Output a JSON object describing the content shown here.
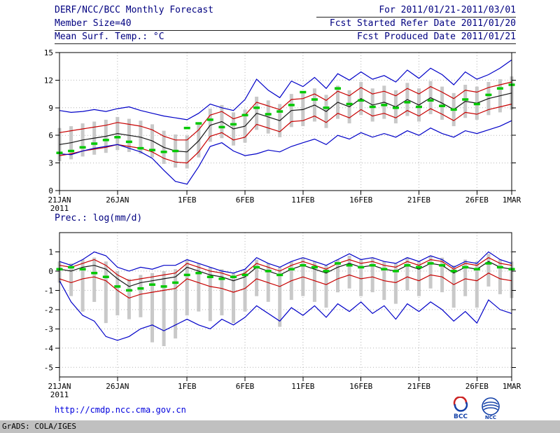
{
  "header": {
    "title": "DERF/NCC/BCC Monthly Forecast",
    "member_size": "Member Size=40",
    "for_range": "For 2011/01/21-2011/03/01",
    "fcst_started": "Fcst Started Refer Date 2011/01/20",
    "fcst_produced": "Fcst Produced Date 2011/01/21"
  },
  "footer": {
    "url": "http://cmdp.ncc.cma.gov.cn",
    "grads_credit": "GrADS: COLA/IGES",
    "bcc_logo_text": "BCC",
    "ncc_logo_text": "NCC"
  },
  "colors": {
    "header_text": "#000080",
    "ensemble_max_min": "#0000c8",
    "quartile_lines": "#c80000",
    "ensemble_mean": "#141414",
    "observation": "#00c800",
    "spread_bars": "#c9c9c9",
    "grid": "#b4b4b4",
    "url": "#0000dd"
  },
  "chart_data": [
    {
      "type": "line",
      "title": "Mean Surf. Temp.: °C",
      "xlabel": "",
      "ylabel": "°C",
      "ylim": [
        0,
        15
      ],
      "yticks": [
        0,
        3,
        6,
        9,
        12,
        15
      ],
      "grid": "dotted",
      "n": 40,
      "x_tick_positions": [
        0,
        5,
        11,
        16,
        21,
        26,
        31,
        36,
        39
      ],
      "x_tick_labels": [
        "21JAN",
        "26JAN",
        "1FEB",
        "6FEB",
        "11FEB",
        "16FEB",
        "21FEB",
        "26FEB",
        "1MAR"
      ],
      "x_sub_label": "2011",
      "series": [
        {
          "name": "spread-bars",
          "type": "bar",
          "color": "#c9c9c9",
          "low": [
            3.2,
            3.4,
            3.7,
            3.9,
            4.1,
            4.4,
            4.2,
            4.0,
            3.6,
            2.9,
            2.5,
            2.4,
            3.6,
            5.3,
            5.7,
            4.9,
            5.2,
            6.6,
            6.2,
            5.8,
            6.9,
            7.0,
            7.5,
            6.8,
            7.8,
            7.3,
            8.2,
            7.5,
            7.8,
            7.3,
            8.1,
            7.5,
            8.3,
            7.7,
            7.0,
            7.9,
            7.7,
            8.2,
            8.5,
            8.8
          ],
          "high": [
            6.8,
            7.0,
            7.3,
            7.5,
            7.7,
            8.0,
            7.8,
            7.6,
            7.2,
            6.5,
            6.1,
            6.0,
            7.2,
            8.9,
            9.3,
            8.5,
            8.8,
            10.2,
            9.8,
            9.4,
            10.5,
            10.6,
            11.1,
            10.4,
            11.4,
            10.9,
            11.8,
            11.1,
            11.4,
            10.9,
            11.7,
            11.1,
            11.9,
            11.3,
            10.6,
            11.5,
            11.3,
            11.8,
            12.1,
            12.4
          ]
        },
        {
          "name": "ensemble-max",
          "type": "line",
          "color": "#0000c8",
          "values": [
            8.7,
            8.5,
            8.6,
            8.8,
            8.6,
            8.9,
            9.1,
            8.7,
            8.4,
            8.1,
            7.9,
            7.7,
            8.4,
            9.4,
            9.0,
            8.7,
            9.9,
            12.1,
            10.9,
            10.1,
            11.9,
            11.3,
            12.3,
            11.1,
            12.7,
            12.0,
            12.9,
            12.1,
            12.5,
            11.8,
            13.1,
            12.2,
            13.3,
            12.6,
            11.5,
            12.9,
            12.1,
            12.6,
            13.3,
            14.2
          ]
        },
        {
          "name": "upper-quartile",
          "type": "line",
          "color": "#c80000",
          "values": [
            6.3,
            6.5,
            6.7,
            6.9,
            7.1,
            7.4,
            7.2,
            7.0,
            6.6,
            5.9,
            5.5,
            5.5,
            6.6,
            8.2,
            8.6,
            7.8,
            8.2,
            9.6,
            9.2,
            8.8,
            9.9,
            10.0,
            10.5,
            9.8,
            10.8,
            10.3,
            11.2,
            10.5,
            10.8,
            10.3,
            11.1,
            10.5,
            11.3,
            10.7,
            10.0,
            10.9,
            10.7,
            11.2,
            11.5,
            11.8
          ]
        },
        {
          "name": "ensemble-mean",
          "type": "line",
          "color": "#141414",
          "values": [
            5.0,
            5.2,
            5.5,
            5.7,
            5.9,
            6.2,
            6.0,
            5.8,
            5.4,
            4.7,
            4.3,
            4.2,
            5.4,
            7.1,
            7.5,
            6.7,
            7.0,
            8.4,
            8.0,
            7.6,
            8.7,
            8.8,
            9.3,
            8.6,
            9.6,
            9.1,
            10.0,
            9.3,
            9.6,
            9.1,
            9.9,
            9.3,
            10.1,
            9.5,
            8.8,
            9.7,
            9.5,
            10.0,
            10.3,
            10.6
          ]
        },
        {
          "name": "lower-quartile",
          "type": "line",
          "color": "#c80000",
          "values": [
            3.8,
            4.0,
            4.3,
            4.5,
            4.7,
            5.0,
            4.8,
            4.6,
            4.2,
            3.5,
            3.1,
            3.0,
            4.2,
            5.9,
            6.3,
            5.5,
            5.8,
            7.2,
            6.8,
            6.4,
            7.5,
            7.6,
            8.1,
            7.4,
            8.4,
            7.9,
            8.8,
            8.1,
            8.4,
            7.9,
            8.7,
            8.1,
            8.9,
            8.3,
            7.6,
            8.5,
            8.3,
            8.8,
            9.1,
            9.4
          ]
        },
        {
          "name": "ensemble-min",
          "type": "line",
          "color": "#0000c8",
          "values": [
            4.0,
            3.9,
            4.3,
            4.6,
            4.8,
            5.0,
            4.6,
            4.2,
            3.5,
            2.2,
            1.0,
            0.7,
            2.6,
            4.8,
            5.2,
            4.3,
            3.8,
            4.0,
            4.4,
            4.2,
            4.8,
            5.2,
            5.6,
            5.0,
            6.0,
            5.6,
            6.3,
            5.8,
            6.2,
            5.8,
            6.5,
            6.0,
            6.8,
            6.2,
            5.8,
            6.5,
            6.2,
            6.6,
            7.0,
            7.6
          ]
        },
        {
          "name": "observation",
          "type": "dash",
          "color": "#00c800",
          "values": [
            4.1,
            4.3,
            4.7,
            5.1,
            5.5,
            5.8,
            5.3,
            4.6,
            4.4,
            4.2,
            4.3,
            6.8,
            7.3,
            7.7,
            6.9,
            7.2,
            8.2,
            9.0,
            8.3,
            8.6,
            9.3,
            10.7,
            9.9,
            9.0,
            11.1,
            9.4,
            9.8,
            9.1,
            9.3,
            9.0,
            9.6,
            9.1,
            9.8,
            9.2,
            8.8,
            9.9,
            9.4,
            10.4,
            11.1,
            11.5
          ]
        }
      ]
    },
    {
      "type": "line",
      "title": "Prec.: log(mm/d)",
      "xlabel": "",
      "ylabel": "log(mm/d)",
      "ylim": [
        -5.5,
        2.0
      ],
      "yticks": [
        1,
        0,
        -1,
        -2,
        -3,
        -4,
        -5
      ],
      "grid": "dotted",
      "n": 40,
      "x_tick_positions": [
        0,
        5,
        11,
        16,
        21,
        26,
        31,
        36,
        39
      ],
      "x_tick_labels": [
        "21JAN",
        "26JAN",
        "1FEB",
        "6FEB",
        "11FEB",
        "16FEB",
        "21FEB",
        "26FEB",
        "1MAR"
      ],
      "x_sub_label": "2011",
      "series": [
        {
          "name": "spread-bars",
          "type": "bar",
          "color": "#c9c9c9",
          "low": [
            -0.6,
            -1.3,
            -2.1,
            -1.6,
            -2.7,
            -2.3,
            -2.5,
            -2.4,
            -3.7,
            -3.9,
            -3.5,
            -2.3,
            -2.1,
            -2.6,
            -2.3,
            -2.7,
            -2.1,
            -1.3,
            -1.6,
            -2.9,
            -1.5,
            -1.3,
            -1.6,
            -1.9,
            -1.1,
            -0.9,
            -1.3,
            -1.1,
            -1.5,
            -1.7,
            -1.0,
            -1.3,
            -0.9,
            -1.1,
            -1.9,
            -1.3,
            -1.9,
            -0.8,
            -1.2,
            -1.4
          ],
          "high": [
            0.5,
            0.4,
            0.6,
            0.7,
            0.5,
            0.0,
            -0.4,
            -0.2,
            -0.1,
            0.0,
            0.1,
            0.6,
            0.4,
            0.2,
            0.1,
            -0.1,
            0.1,
            0.6,
            0.4,
            0.2,
            0.5,
            0.7,
            0.5,
            0.3,
            0.6,
            0.8,
            0.6,
            0.7,
            0.5,
            0.4,
            0.7,
            0.5,
            0.8,
            0.7,
            0.3,
            0.6,
            0.5,
            0.9,
            0.6,
            0.5
          ]
        },
        {
          "name": "ensemble-max",
          "type": "line",
          "color": "#0000c8",
          "values": [
            0.5,
            0.3,
            0.6,
            1.0,
            0.8,
            0.2,
            0.0,
            0.2,
            0.1,
            0.3,
            0.3,
            0.6,
            0.4,
            0.2,
            0.0,
            -0.1,
            0.1,
            0.7,
            0.4,
            0.2,
            0.5,
            0.7,
            0.5,
            0.3,
            0.6,
            0.9,
            0.6,
            0.7,
            0.5,
            0.4,
            0.7,
            0.5,
            0.8,
            0.6,
            0.2,
            0.5,
            0.4,
            1.0,
            0.6,
            0.4
          ]
        },
        {
          "name": "upper-quartile",
          "type": "line",
          "color": "#c80000",
          "values": [
            0.3,
            0.2,
            0.4,
            0.6,
            0.3,
            -0.2,
            -0.5,
            -0.4,
            -0.3,
            -0.2,
            -0.1,
            0.4,
            0.2,
            0.0,
            -0.1,
            -0.3,
            -0.1,
            0.4,
            0.2,
            0.0,
            0.3,
            0.5,
            0.3,
            0.1,
            0.4,
            0.6,
            0.4,
            0.5,
            0.3,
            0.2,
            0.5,
            0.3,
            0.6,
            0.5,
            0.1,
            0.4,
            0.3,
            0.7,
            0.4,
            0.3
          ]
        },
        {
          "name": "ensemble-mean",
          "type": "line",
          "color": "#141414",
          "values": [
            0.1,
            0.0,
            0.2,
            0.3,
            0.1,
            -0.4,
            -0.8,
            -0.6,
            -0.5,
            -0.4,
            -0.3,
            0.2,
            0.0,
            -0.2,
            -0.3,
            -0.5,
            -0.3,
            0.2,
            0.0,
            -0.2,
            0.1,
            0.3,
            0.1,
            -0.1,
            0.2,
            0.4,
            0.2,
            0.3,
            0.1,
            0.0,
            0.3,
            0.1,
            0.4,
            0.3,
            -0.1,
            0.2,
            0.1,
            0.5,
            0.2,
            0.1
          ]
        },
        {
          "name": "lower-quartile",
          "type": "line",
          "color": "#c80000",
          "values": [
            -0.4,
            -0.6,
            -0.4,
            -0.3,
            -0.5,
            -1.0,
            -1.4,
            -1.2,
            -1.1,
            -1.0,
            -0.9,
            -0.4,
            -0.6,
            -0.8,
            -0.9,
            -1.1,
            -0.9,
            -0.4,
            -0.6,
            -0.8,
            -0.5,
            -0.3,
            -0.5,
            -0.7,
            -0.4,
            -0.2,
            -0.4,
            -0.3,
            -0.5,
            -0.6,
            -0.3,
            -0.5,
            -0.2,
            -0.3,
            -0.7,
            -0.4,
            -0.5,
            -0.1,
            -0.4,
            -0.5
          ]
        },
        {
          "name": "ensemble-min",
          "type": "line",
          "color": "#0000c8",
          "values": [
            -0.5,
            -1.6,
            -2.3,
            -2.6,
            -3.4,
            -3.6,
            -3.4,
            -3.0,
            -2.8,
            -3.1,
            -2.8,
            -2.5,
            -2.8,
            -3.0,
            -2.5,
            -2.8,
            -2.4,
            -1.8,
            -2.2,
            -2.6,
            -1.9,
            -2.3,
            -1.8,
            -2.4,
            -1.7,
            -2.1,
            -1.6,
            -2.2,
            -1.8,
            -2.5,
            -1.7,
            -2.1,
            -1.6,
            -2.0,
            -2.6,
            -2.1,
            -2.7,
            -1.5,
            -2.0,
            -2.2
          ]
        },
        {
          "name": "observation",
          "type": "dash",
          "color": "#00c800",
          "values": [
            0.1,
            0.2,
            0.1,
            -0.1,
            -0.3,
            -0.8,
            -1.0,
            -0.9,
            -0.7,
            -0.8,
            -0.6,
            -0.2,
            -0.1,
            -0.3,
            -0.4,
            -0.3,
            -0.2,
            0.2,
            0.0,
            -0.2,
            0.1,
            0.3,
            0.2,
            0.0,
            0.4,
            0.3,
            0.2,
            0.3,
            0.1,
            0.0,
            0.3,
            0.2,
            0.4,
            0.3,
            0.0,
            0.2,
            0.1,
            0.4,
            0.2,
            0.1
          ]
        }
      ]
    }
  ]
}
